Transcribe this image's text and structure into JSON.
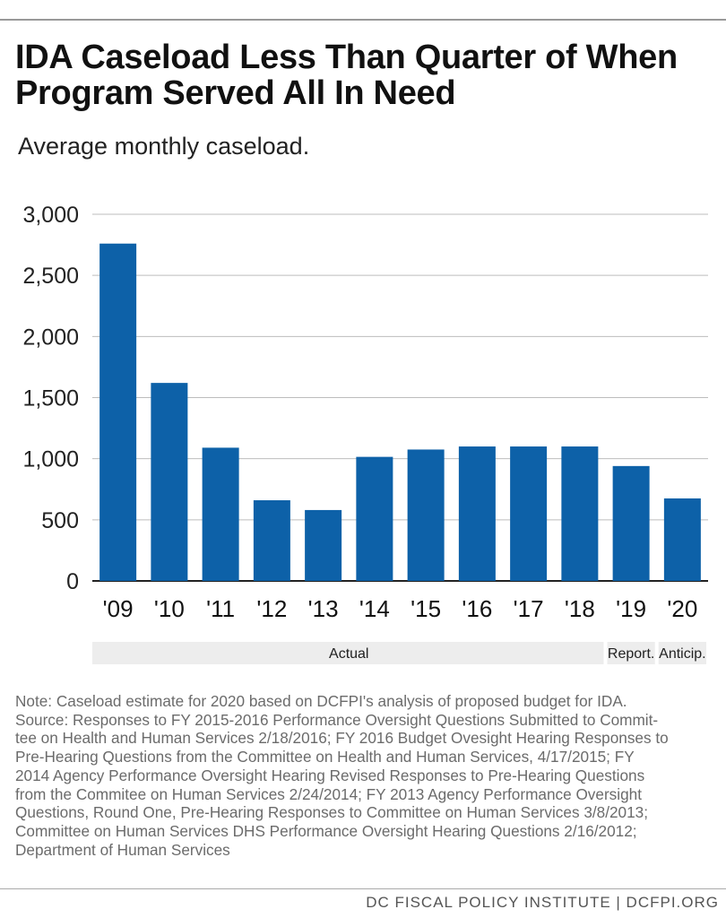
{
  "title": "IDA Caseload Less Than Quarter of When Program Served All In Need",
  "subtitle": "Average monthly caseload.",
  "chart_data": {
    "type": "bar",
    "categories": [
      "'09",
      "'10",
      "'11",
      "'12",
      "'13",
      "'14",
      "'15",
      "'16",
      "'17",
      "'18",
      "'19",
      "'20"
    ],
    "values": [
      2760,
      1620,
      1090,
      660,
      580,
      1015,
      1075,
      1100,
      1100,
      1100,
      940,
      675
    ],
    "ylim": [
      0,
      3000
    ],
    "yticks": [
      0,
      500,
      1000,
      1500,
      2000,
      2500,
      3000
    ],
    "ytick_labels": [
      "0",
      "500",
      "1,000",
      "1,500",
      "2,000",
      "2,500",
      "3,000"
    ],
    "grid": true,
    "bar_color": "#0d61a8",
    "groups": [
      {
        "label": "Actual",
        "from": 0,
        "to": 9
      },
      {
        "label": "Report.",
        "from": 10,
        "to": 10
      },
      {
        "label": "Anticip.",
        "from": 11,
        "to": 11
      }
    ]
  },
  "note_lines": [
    "Note: Caseload estimate for 2020 based  on DCFPI's analysis of proposed budget for IDA.",
    "Source: Responses to FY 2015-2016 Performance Oversight Questions Submitted to Commit-",
    "tee on Health and Human Services 2/18/2016; FY 2016 Budget Ovesight Hearing Responses to",
    "Pre-Hearing Questions from the Committee on Health and Human Services, 4/17/2015; FY",
    "2014 Agency Performance Oversight Hearing Revised Responses to Pre-Hearing Questions",
    "from the Commitee on Human Services 2/24/2014; FY 2013 Agency Performance Oversight",
    "Questions, Round One, Pre-Hearing Responses to Committee on Human Services 3/8/2013;",
    "Committee on Human Services DHS Performance Oversight Hearing Questions 2/16/2012;",
    "Department of Human Services"
  ],
  "footer": "DC FISCAL POLICY INSTITUTE | DCFPI.ORG"
}
